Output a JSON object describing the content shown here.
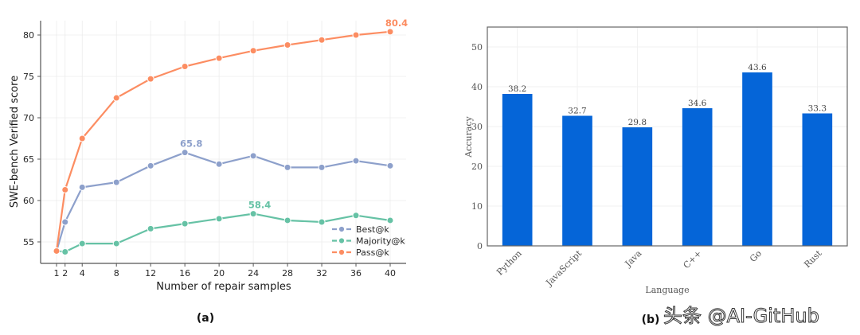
{
  "chart_data": [
    {
      "type": "line",
      "panel_label": "(a)",
      "title": "",
      "xlabel": "Number of repair samples",
      "ylabel": "SWE-bench Verified score",
      "x": [
        1,
        2,
        4,
        8,
        12,
        16,
        20,
        24,
        28,
        32,
        36,
        40
      ],
      "x_ticks": [
        1,
        2,
        4,
        8,
        12,
        16,
        20,
        24,
        28,
        32,
        36,
        40
      ],
      "y_ticks": [
        55,
        60,
        65,
        70,
        75,
        80
      ],
      "xlim": [
        -2,
        41.5
      ],
      "ylim": [
        52.5,
        81.7
      ],
      "grid": true,
      "legend_position": "lower-right",
      "series": [
        {
          "name": "Best@k",
          "color": "#8da0cb",
          "values": [
            53.9,
            57.4,
            61.6,
            62.2,
            64.2,
            65.8,
            64.4,
            65.4,
            64.0,
            64.0,
            64.8,
            64.2
          ],
          "annotation": {
            "x": 16,
            "y": 65.8,
            "text": "65.8"
          }
        },
        {
          "name": "Majority@k",
          "color": "#66c2a5",
          "values": [
            53.9,
            53.8,
            54.8,
            54.8,
            56.6,
            57.2,
            57.8,
            58.4,
            57.6,
            57.4,
            58.2,
            57.6
          ],
          "annotation": {
            "x": 24,
            "y": 58.4,
            "text": "58.4"
          }
        },
        {
          "name": "Pass@k",
          "color": "#fc8d62",
          "values": [
            53.9,
            61.3,
            67.5,
            72.4,
            74.7,
            76.2,
            77.2,
            78.1,
            78.8,
            79.4,
            80.0,
            80.4
          ],
          "annotation": {
            "x": 40,
            "y": 80.4,
            "text": "80.4"
          }
        }
      ]
    },
    {
      "type": "bar",
      "panel_label": "(b)",
      "title": "",
      "xlabel": "Language",
      "ylabel": "Accuracy",
      "categories": [
        "Python",
        "JavaScript",
        "Java",
        "C++",
        "Go",
        "Rust"
      ],
      "values": [
        38.2,
        32.7,
        29.8,
        34.6,
        43.6,
        33.3
      ],
      "value_labels": [
        "38.2",
        "32.7",
        "29.8",
        "34.6",
        "43.6",
        "33.3"
      ],
      "y_ticks": [
        0,
        10,
        20,
        30,
        40,
        50
      ],
      "ylim": [
        0,
        55
      ],
      "grid": true,
      "bar_color": "#0565d8"
    }
  ],
  "watermark": "头条 @AI-GitHub"
}
